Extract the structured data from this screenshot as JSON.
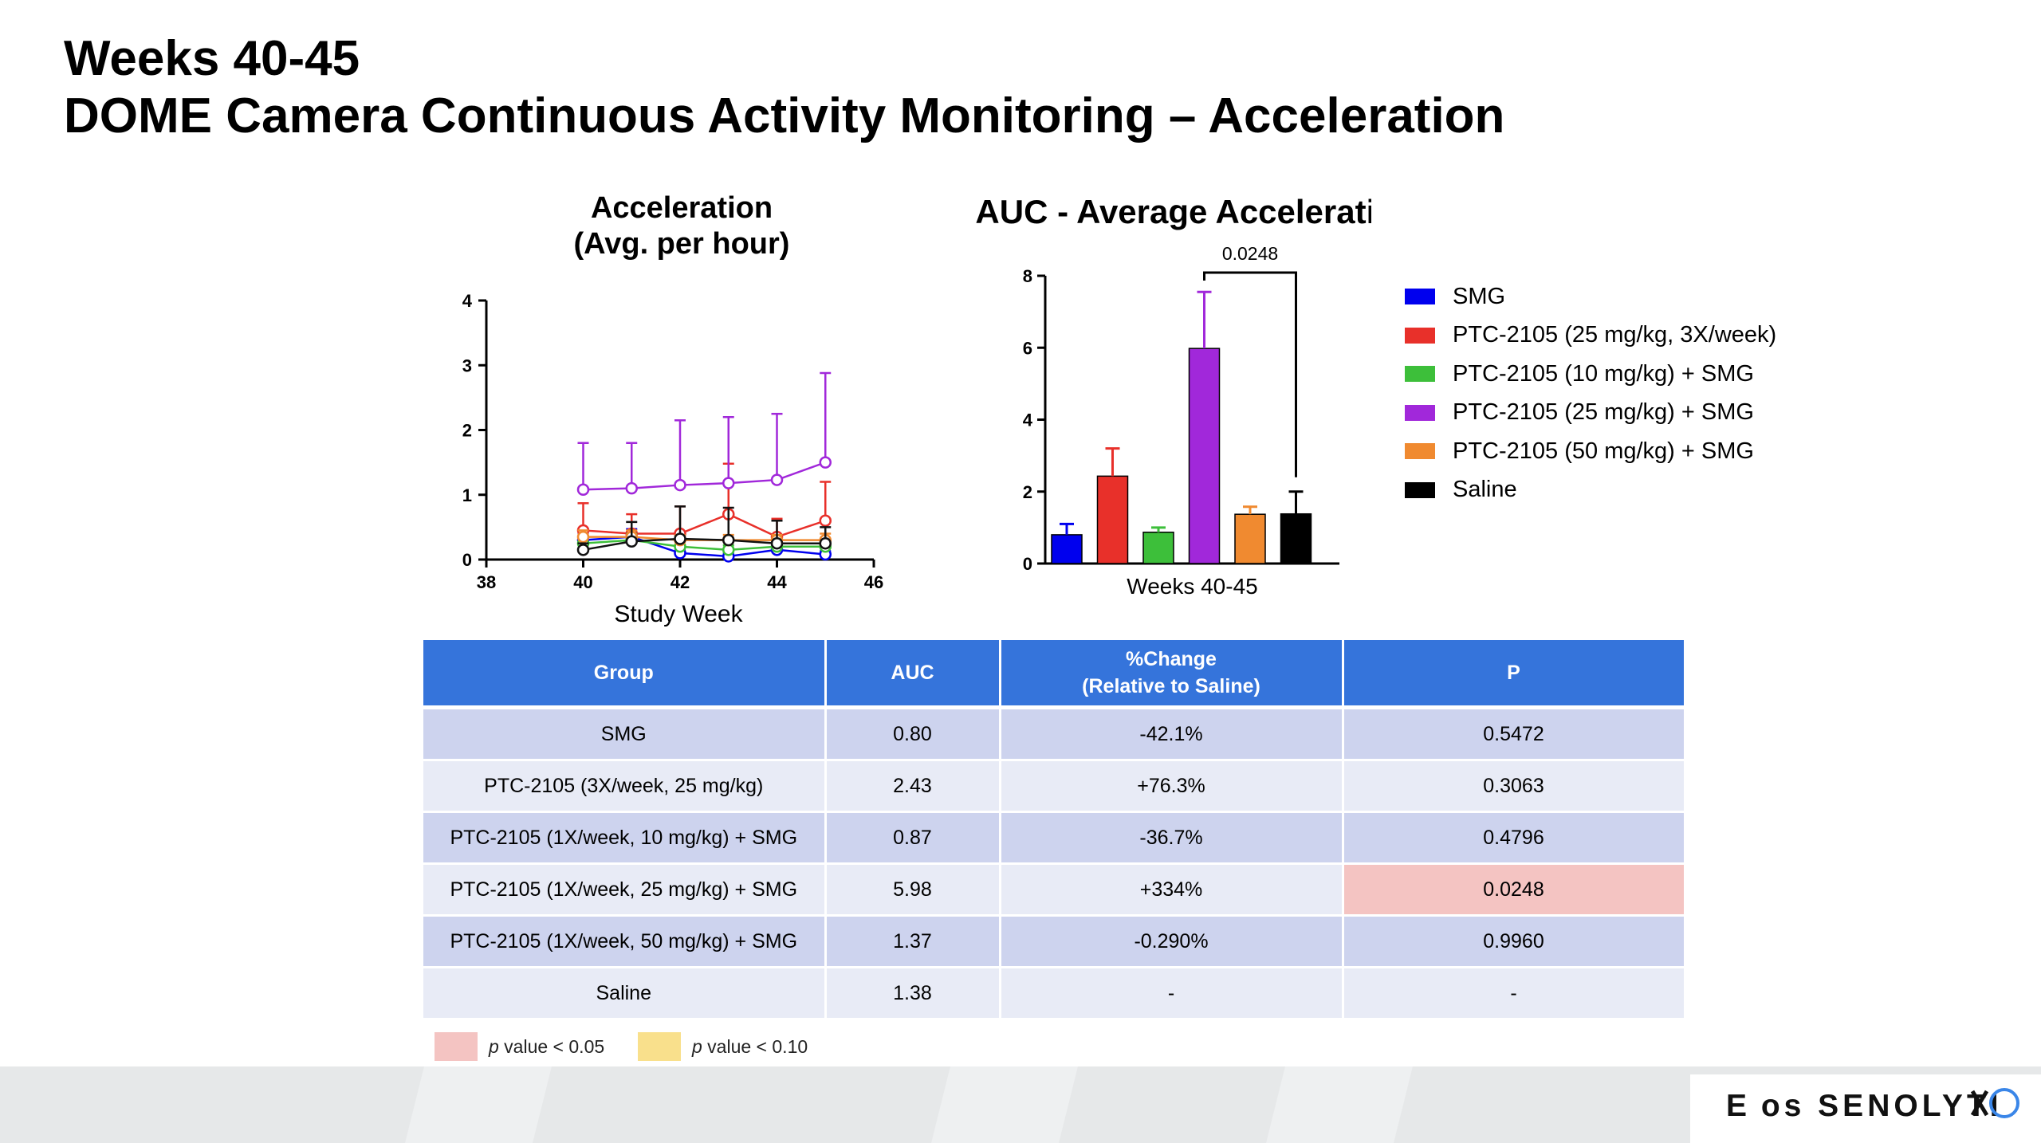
{
  "title": {
    "line1": "Weeks 40-45",
    "line2": "DOME Camera Continuous Activity Monitoring – Acceleration"
  },
  "chart_data": [
    {
      "type": "line",
      "title": "Acceleration",
      "subtitle": "(Avg. per hour)",
      "xlabel": "Study Week",
      "ylabel": "",
      "xlim": [
        38,
        46
      ],
      "ylim": [
        0,
        4
      ],
      "xticks": [
        "38",
        "40",
        "42",
        "44",
        "46"
      ],
      "yticks": [
        "0",
        "1",
        "2",
        "3",
        "4"
      ],
      "x": [
        40,
        41,
        42,
        43,
        44,
        45
      ],
      "series": [
        {
          "name": "SMG",
          "color": "#0000EE",
          "values": [
            0.3,
            0.35,
            0.1,
            0.05,
            0.15,
            0.08
          ],
          "errors": [
            0.1,
            0.12,
            0.06,
            0.05,
            0.07,
            0.05
          ]
        },
        {
          "name": "PTC-2105 (25 mg/kg, 3X/week)",
          "color": "#E8302A",
          "values": [
            0.45,
            0.4,
            0.4,
            0.7,
            0.35,
            0.6
          ],
          "errors": [
            0.42,
            0.3,
            0.42,
            0.78,
            0.28,
            0.6
          ]
        },
        {
          "name": "PTC-2105 (10 mg/kg) + SMG",
          "color": "#3DBF3A",
          "values": [
            0.25,
            0.3,
            0.2,
            0.15,
            0.2,
            0.2
          ],
          "errors": [
            0.08,
            0.1,
            0.08,
            0.07,
            0.06,
            0.08
          ]
        },
        {
          "name": "PTC-2105 (25 mg/kg) + SMG",
          "color": "#A128DA",
          "values": [
            1.08,
            1.1,
            1.15,
            1.18,
            1.23,
            1.5
          ],
          "errors": [
            0.72,
            0.7,
            1.0,
            1.02,
            1.02,
            1.38
          ]
        },
        {
          "name": "PTC-2105 (50 mg/kg) + SMG",
          "color": "#F08A30",
          "values": [
            0.35,
            0.35,
            0.3,
            0.3,
            0.3,
            0.3
          ],
          "errors": [
            0.1,
            0.1,
            0.08,
            0.08,
            0.08,
            0.1
          ]
        },
        {
          "name": "Saline",
          "color": "#111111",
          "values": [
            0.15,
            0.28,
            0.32,
            0.3,
            0.25,
            0.25
          ],
          "errors": [
            0.1,
            0.3,
            0.5,
            0.5,
            0.35,
            0.25
          ]
        }
      ]
    },
    {
      "type": "bar",
      "title": "AUC - Average Acceleration",
      "xlabel": "Weeks 40-45",
      "ylabel": "",
      "ylim": [
        0,
        8
      ],
      "yticks": [
        "0",
        "2",
        "4",
        "6",
        "8"
      ],
      "categories": [
        "SMG",
        "PTC-2105 (25 mg/kg, 3X/week)",
        "PTC-2105 (10 mg/kg) + SMG",
        "PTC-2105 (25 mg/kg) + SMG",
        "PTC-2105 (50 mg/kg) + SMG",
        "Saline"
      ],
      "values": [
        0.8,
        2.43,
        0.87,
        5.98,
        1.37,
        1.38
      ],
      "errors": [
        0.3,
        0.77,
        0.13,
        1.57,
        0.21,
        0.62
      ],
      "colors": [
        "#0000EE",
        "#E8302A",
        "#3DBF3A",
        "#A128DA",
        "#F08A30",
        "#000000"
      ],
      "annotation": "0.0248",
      "legend_position": "right"
    }
  ],
  "table": {
    "headers": [
      "Group",
      "AUC",
      "%Change",
      "(Relative to Saline)",
      "P"
    ],
    "rows": [
      {
        "group": "SMG",
        "auc": "0.80",
        "change": "-42.1%",
        "p": "0.5472"
      },
      {
        "group": "PTC-2105 (3X/week, 25 mg/kg)",
        "auc": "2.43",
        "change": "+76.3%",
        "p": "0.3063"
      },
      {
        "group": "PTC-2105 (1X/week, 10 mg/kg) + SMG",
        "auc": "0.87",
        "change": "-36.7%",
        "p": "0.4796"
      },
      {
        "group": "PTC-2105 (1X/week, 25 mg/kg) + SMG",
        "auc": "5.98",
        "change": "+334%",
        "p": "0.0248"
      },
      {
        "group": "PTC-2105 (1X/week, 50 mg/kg) + SMG",
        "auc": "1.37",
        "change": "-0.290%",
        "p": "0.9960"
      },
      {
        "group": "Saline",
        "auc": "1.38",
        "change": "-",
        "p": "-"
      }
    ]
  },
  "pkey": {
    "p_label": "p",
    "sig05": " value < 0.05",
    "sig10": " value < 0.10",
    "color05": "#F4C4C2",
    "color10": "#F9E08C"
  },
  "footer": {
    "logo_text": "E os SENOLYTI"
  }
}
